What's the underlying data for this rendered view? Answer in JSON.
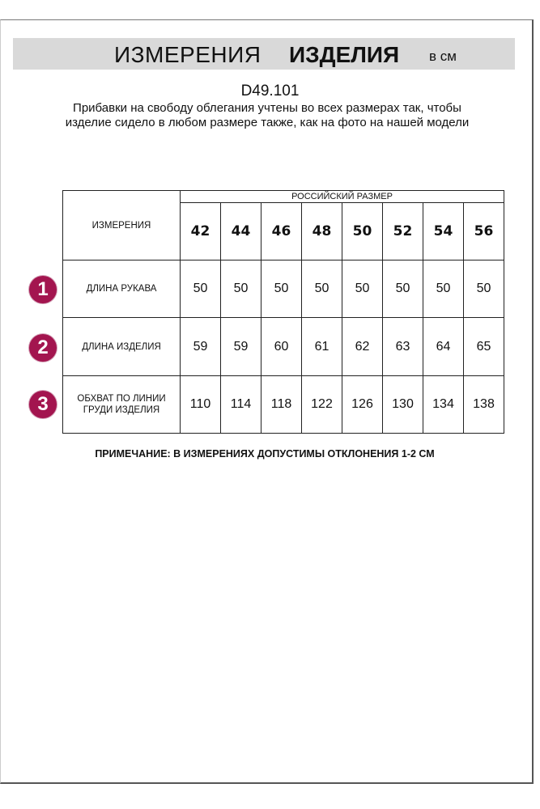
{
  "header": {
    "title_regular": "ИЗМЕРЕНИЯ",
    "title_bold": "ИЗДЕЛИЯ",
    "units": "в см"
  },
  "model_code": "D49.101",
  "description": "Прибавки на свободу облегания учтены во всех размерах так, чтобы изделие сидело в любом размере также, как на фото на нашей модели",
  "table": {
    "corner_label": "ИЗМЕРЕНИЯ",
    "group_header": "РОССИЙСКИЙ РАЗМЕР",
    "sizes": [
      "42",
      "44",
      "46",
      "48",
      "50",
      "52",
      "54",
      "56"
    ],
    "rows": [
      {
        "number": "1",
        "label": "ДЛИНА РУКАВА",
        "values": [
          "50",
          "50",
          "50",
          "50",
          "50",
          "50",
          "50",
          "50"
        ]
      },
      {
        "number": "2",
        "label": "ДЛИНА ИЗДЕЛИЯ",
        "values": [
          "59",
          "59",
          "60",
          "61",
          "62",
          "63",
          "64",
          "65"
        ]
      },
      {
        "number": "3",
        "label": "ОБХВАТ ПО ЛИНИИ ГРУДИ ИЗДЕЛИЯ",
        "values": [
          "110",
          "114",
          "118",
          "122",
          "126",
          "130",
          "134",
          "138"
        ]
      }
    ]
  },
  "note": "ПРИМЕЧАНИЕ: В ИЗМЕРЕНИЯХ ДОПУСТИМЫ ОТКЛОНЕНИЯ 1-2 СМ",
  "colors": {
    "accent": "#a3154f",
    "banner": "#d9d9d9"
  }
}
